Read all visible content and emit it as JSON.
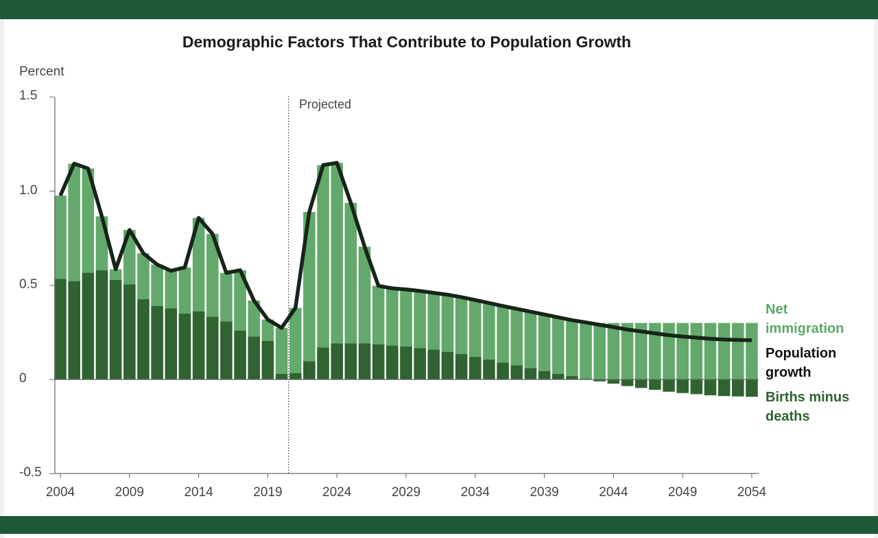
{
  "chart_data": {
    "type": "bar",
    "title": "Demographic Factors That Contribute to Population Growth",
    "ylabel": "Percent",
    "xlabel": "",
    "ylim": [
      -0.5,
      1.5
    ],
    "yticks": [
      "1.5",
      "1.0",
      "0.5",
      "0",
      "-0.5"
    ],
    "ytick_values": [
      1.5,
      1.0,
      0.5,
      0,
      -0.5
    ],
    "xticks": [
      "2004",
      "2009",
      "2014",
      "2019",
      "2024",
      "2029",
      "2034",
      "2039",
      "2044",
      "2049",
      "2054"
    ],
    "xtick_values": [
      2004,
      2009,
      2014,
      2019,
      2024,
      2029,
      2034,
      2039,
      2044,
      2049,
      2054
    ],
    "projected_label": "Projected",
    "projected_from": 2020.5,
    "years": [
      2004,
      2005,
      2006,
      2007,
      2008,
      2009,
      2010,
      2011,
      2012,
      2013,
      2014,
      2015,
      2016,
      2017,
      2018,
      2019,
      2020,
      2021,
      2022,
      2023,
      2024,
      2025,
      2026,
      2027,
      2028,
      2029,
      2030,
      2031,
      2032,
      2033,
      2034,
      2035,
      2036,
      2037,
      2038,
      2039,
      2040,
      2041,
      2042,
      2043,
      2044,
      2045,
      2046,
      2047,
      2048,
      2049,
      2050,
      2051,
      2052,
      2053,
      2054
    ],
    "series": [
      {
        "name": "Births minus deaths",
        "type": "bar",
        "color": "#2f6330",
        "values": [
          0.534,
          0.522,
          0.567,
          0.58,
          0.529,
          0.505,
          0.426,
          0.39,
          0.377,
          0.35,
          0.362,
          0.333,
          0.308,
          0.26,
          0.228,
          0.205,
          0.03,
          0.034,
          0.097,
          0.17,
          0.192,
          0.192,
          0.192,
          0.187,
          0.18,
          0.175,
          0.167,
          0.159,
          0.147,
          0.135,
          0.12,
          0.106,
          0.09,
          0.075,
          0.06,
          0.045,
          0.03,
          0.018,
          0.005,
          -0.01,
          -0.022,
          -0.035,
          -0.045,
          -0.055,
          -0.065,
          -0.072,
          -0.078,
          -0.084,
          -0.088,
          -0.09,
          -0.092
        ]
      },
      {
        "name": "Net immigration",
        "type": "bar",
        "color": "#63a96b",
        "values": [
          0.442,
          0.624,
          0.553,
          0.286,
          0.056,
          0.289,
          0.244,
          0.22,
          0.2,
          0.245,
          0.496,
          0.44,
          0.258,
          0.32,
          0.191,
          0.113,
          0.244,
          0.346,
          0.792,
          0.968,
          0.958,
          0.746,
          0.513,
          0.31,
          0.304,
          0.303,
          0.303,
          0.301,
          0.303,
          0.302,
          0.302,
          0.3,
          0.3,
          0.3,
          0.3,
          0.3,
          0.3,
          0.3,
          0.3,
          0.3,
          0.3,
          0.3,
          0.3,
          0.3,
          0.3,
          0.3,
          0.3,
          0.3,
          0.3,
          0.3,
          0.3
        ]
      },
      {
        "name": "Population growth",
        "type": "line",
        "color": "#172519",
        "values": [
          0.976,
          1.146,
          1.12,
          0.866,
          0.585,
          0.794,
          0.67,
          0.61,
          0.577,
          0.595,
          0.858,
          0.773,
          0.566,
          0.58,
          0.419,
          0.318,
          0.274,
          0.38,
          0.889,
          1.138,
          1.15,
          0.938,
          0.705,
          0.497,
          0.484,
          0.478,
          0.47,
          0.46,
          0.45,
          0.437,
          0.422,
          0.406,
          0.39,
          0.375,
          0.36,
          0.345,
          0.33,
          0.315,
          0.303,
          0.29,
          0.278,
          0.265,
          0.255,
          0.245,
          0.235,
          0.228,
          0.222,
          0.216,
          0.212,
          0.21,
          0.208
        ]
      }
    ],
    "legend": [
      {
        "label1": "Net",
        "label2": "immigration",
        "color": "#5aa867"
      },
      {
        "label1": "Population",
        "label2": "growth",
        "color": "#111111"
      },
      {
        "label1": "Births minus",
        "label2": "deaths",
        "color": "#2f6330"
      }
    ],
    "legend_placement": "right",
    "grid": false
  }
}
